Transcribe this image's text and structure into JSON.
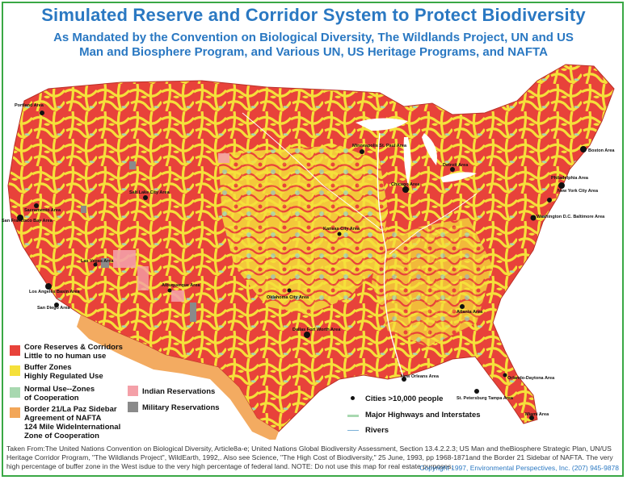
{
  "title": "Simulated Reserve and Corridor System to Protect Biodiversity",
  "subtitle_line1": "As Mandated by the Convention on Biological Diversity, The Wildlands Project, UN and US",
  "subtitle_line2": "Man and Biosphere Program, and Various UN, US Heritage Programs, and NAFTA",
  "legend": {
    "core_l1": "Core Reserves & Corridors",
    "core_l2": "Little to no human use",
    "buffer_l1": "Buffer Zones",
    "buffer_l2": "Highly Regulated Use",
    "normal_l1": "Normal Use--Zones",
    "normal_l2": "of Cooperation",
    "border_l1": "Border 21/La Paz Sidebar",
    "border_l2": "Agreement of NAFTA",
    "border_l3": "124 Mile WideInternational",
    "border_l4": "Zone of Cooperation",
    "indian": "Indian Reservations",
    "military": "Military Reservations",
    "cities": "Cities >10,000 people",
    "highways": "Major Highways and Interstates",
    "rivers": "Rivers"
  },
  "colors": {
    "core": "#e8423a",
    "buffer": "#f5e03a",
    "normal": "#a8d8b0",
    "border": "#f2a658",
    "indian": "#f4a0a8",
    "military": "#8a8a8a",
    "title": "#2a78c2",
    "frame": "#3aa845"
  },
  "cities": {
    "portland": "Portland Area",
    "sanfrancisco": "San Francisco Bay Area",
    "sacramento": "Sacramento Area",
    "saltlake": "Salt Lake City Area",
    "lasvegas": "Las Vegas Area",
    "losangeles": "Los Angeles Basin Area",
    "sandiego": "San Diego Area",
    "albuquerque": "Albuquerque Area",
    "dallas": "Dallas Fort Worth Area",
    "neworleans": "New Orleans Area",
    "stpetersburg": "St. Petersburg Tampa Area",
    "miami": "Miami Area",
    "orlando": "Orlando-Daytona Area",
    "atlanta": "Atlanta Area",
    "chicago": "Chicago Area",
    "detroit": "Detroit Area",
    "boston": "Boston Area",
    "newyork": "New York City Area",
    "philadelphia": "Philadelphia Area",
    "washington": "Washington D.C. Baltimore Area",
    "minneapolis": "Minneapolis St. Paul Area",
    "kansascity": "Kansas City Area",
    "oklahoma": "Oklahoma City Area"
  },
  "footer": "Taken From:The United Nations Convention on Biological Diversity, Article8a-e; United Nations Global Biodiversity Assessment, Section 13.4.2.2.3; US Man and theBiosphere Strategic Plan, UN/US Heritage Corridor Program, \"The Wildlands Project\", WildEarth, 1992,. Also see Science, \"The High Cost of Biodiversity,\" 25 June, 1993, pp 1968-1871and the Border 21 Sidebar of NAFTA. The very high percentage of buffer zone in the West isdue to the very high percentage of federal land. NOTE: Do not use this map for real estate purposes.",
  "copyright": "Copyright 1997, Environmental Perspectives, Inc. (207) 945-9878"
}
